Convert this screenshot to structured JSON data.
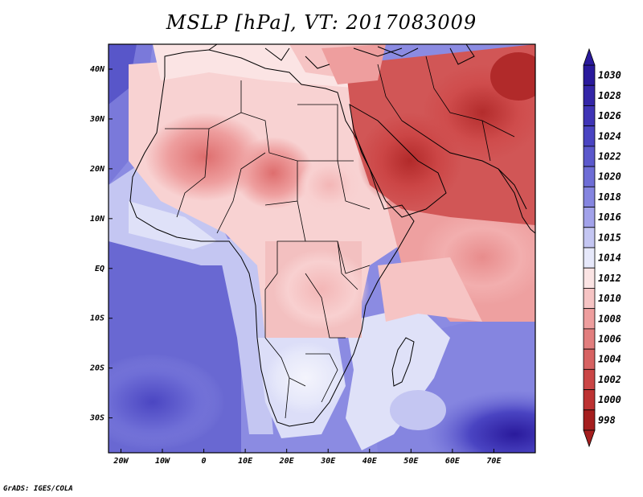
{
  "title": "MSLP [hPa], VT: 2017083009",
  "footer": "GrADS: IGES/COLA",
  "map": {
    "lon_range": [
      -23,
      80
    ],
    "lat_range": [
      -37,
      45
    ],
    "lon_ticks": [
      {
        "value": -20,
        "label": "20W"
      },
      {
        "value": -10,
        "label": "10W"
      },
      {
        "value": 0,
        "label": "0"
      },
      {
        "value": 10,
        "label": "10E"
      },
      {
        "value": 20,
        "label": "20E"
      },
      {
        "value": 30,
        "label": "30E"
      },
      {
        "value": 40,
        "label": "40E"
      },
      {
        "value": 50,
        "label": "50E"
      },
      {
        "value": 60,
        "label": "60E"
      },
      {
        "value": 70,
        "label": "70E"
      }
    ],
    "lat_ticks": [
      {
        "value": 40,
        "label": "40N"
      },
      {
        "value": 30,
        "label": "30N"
      },
      {
        "value": 20,
        "label": "20N"
      },
      {
        "value": 10,
        "label": "10N"
      },
      {
        "value": 0,
        "label": "EQ"
      },
      {
        "value": -10,
        "label": "10S"
      },
      {
        "value": -20,
        "label": "20S"
      },
      {
        "value": -30,
        "label": "30S"
      }
    ]
  },
  "colorbar": {
    "levels": [
      {
        "label": "1030",
        "color": "#2a1a9c"
      },
      {
        "label": "1028",
        "color": "#3426a8"
      },
      {
        "label": "1026",
        "color": "#3f34b6"
      },
      {
        "label": "1024",
        "color": "#4a44c2"
      },
      {
        "label": "1022",
        "color": "#5b58cc"
      },
      {
        "label": "1020",
        "color": "#6e6dd6"
      },
      {
        "label": "1018",
        "color": "#8585e0"
      },
      {
        "label": "1016",
        "color": "#a2a2ea"
      },
      {
        "label": "1015",
        "color": "#c4c6f2"
      },
      {
        "label": "1014",
        "color": "#e6e8fa"
      },
      {
        "label": "1012",
        "color": "#fbe4e4"
      },
      {
        "label": "1010",
        "color": "#f6c4c4"
      },
      {
        "label": "1008",
        "color": "#ee9e9e"
      },
      {
        "label": "1006",
        "color": "#e27e7e"
      },
      {
        "label": "1004",
        "color": "#d76262"
      },
      {
        "label": "1002",
        "color": "#cb4646"
      },
      {
        "label": "1000",
        "color": "#bd3232"
      },
      {
        "label": "998",
        "color": "#a51e1e"
      }
    ]
  }
}
